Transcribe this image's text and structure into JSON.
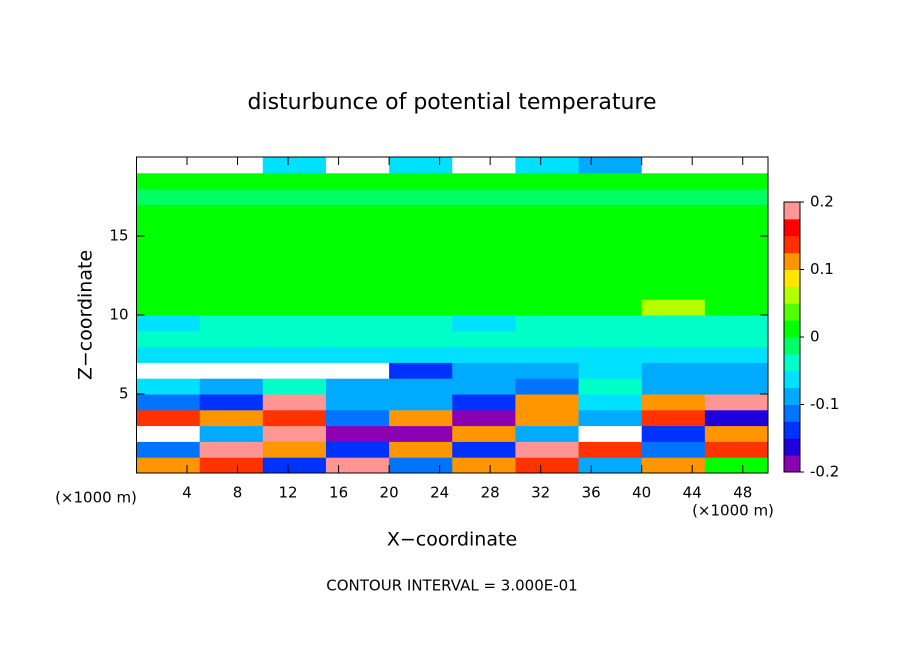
{
  "chart_data": {
    "type": "heatmap",
    "title": "disturbunce of potential temperature",
    "x_label": "X−coordinate",
    "y_label": "Z−coordinate",
    "unit_label_left": "(×1000 m)",
    "unit_label_right": "(×1000 m)",
    "annotation": "CONTOUR INTERVAL = 3.000E-01",
    "xlim": [
      0,
      50
    ],
    "ylim": [
      0,
      20
    ],
    "xticks": [
      4,
      8,
      12,
      16,
      20,
      24,
      28,
      32,
      36,
      40,
      44,
      48
    ],
    "yticks": [
      5,
      10,
      15
    ],
    "xbins": [
      0,
      5,
      10,
      15,
      20,
      25,
      30,
      35,
      40,
      45,
      50
    ],
    "ybins": [
      0,
      1,
      2,
      3,
      4,
      5,
      6,
      7,
      8,
      9,
      10,
      11,
      12,
      13,
      14,
      15,
      16,
      17,
      18,
      19,
      20
    ],
    "values": [
      [
        0.1,
        0.15,
        -0.15,
        0.18,
        -0.12,
        0.12,
        0.15,
        -0.1,
        0.12,
        0.0
      ],
      [
        -0.12,
        0.2,
        0.12,
        -0.15,
        0.1,
        -0.15,
        0.2,
        0.15,
        -0.12,
        0.14
      ],
      [
        0.25,
        -0.1,
        0.18,
        -0.18,
        -0.2,
        0.12,
        -0.1,
        0.25,
        -0.15,
        0.12
      ],
      [
        0.15,
        0.12,
        0.15,
        -0.12,
        0.12,
        -0.18,
        0.1,
        -0.1,
        0.15,
        -0.16
      ],
      [
        -0.12,
        -0.15,
        0.2,
        -0.1,
        -0.1,
        -0.15,
        0.12,
        -0.06,
        0.12,
        0.18
      ],
      [
        -0.06,
        -0.1,
        -0.05,
        -0.08,
        -0.1,
        -0.08,
        -0.12,
        -0.05,
        -0.08,
        -0.1
      ],
      [
        -0.25,
        -0.25,
        -0.25,
        -0.25,
        -0.15,
        -0.1,
        -0.08,
        -0.06,
        -0.1,
        -0.08
      ],
      [
        -0.06,
        -0.06,
        -0.06,
        -0.06,
        -0.06,
        -0.06,
        -0.06,
        -0.06,
        -0.06,
        -0.06
      ],
      [
        -0.04,
        -0.04,
        -0.04,
        -0.04,
        -0.04,
        -0.04,
        -0.04,
        -0.04,
        -0.04,
        -0.04
      ],
      [
        -0.06,
        -0.05,
        -0.05,
        -0.05,
        -0.05,
        -0.06,
        -0.05,
        -0.05,
        -0.05,
        -0.05
      ],
      [
        0.0,
        0.0,
        0.0,
        0.0,
        0.0,
        0.0,
        0.0,
        0.0,
        0.05,
        0.0
      ],
      [
        0.0,
        0.01,
        0.02,
        0.01,
        0.0,
        0.0,
        0.0,
        0.0,
        0.0,
        0.0
      ],
      [
        0.0,
        0.01,
        0.02,
        0.01,
        0.01,
        0.0,
        0.0,
        0.0,
        0.0,
        0.0
      ],
      [
        0.0,
        0.01,
        0.02,
        0.01,
        0.01,
        0.0,
        0.0,
        0.0,
        0.0,
        0.0
      ],
      [
        0.0,
        0.01,
        0.02,
        0.01,
        0.01,
        0.0,
        0.0,
        0.0,
        0.0,
        0.0
      ],
      [
        0.0,
        0.01,
        0.01,
        0.01,
        0.01,
        0.0,
        0.0,
        0.0,
        0.0,
        0.0
      ],
      [
        0.0,
        0.01,
        0.01,
        0.01,
        0.0,
        0.0,
        0.0,
        0.0,
        0.0,
        0.0
      ],
      [
        -0.02,
        -0.02,
        -0.02,
        -0.02,
        -0.02,
        -0.02,
        -0.02,
        -0.02,
        -0.02,
        -0.02
      ],
      [
        0.0,
        0.0,
        0.0,
        0.0,
        0.0,
        0.0,
        0.0,
        0.0,
        0.0,
        0.0
      ],
      [
        -0.25,
        -0.25,
        -0.06,
        -0.25,
        -0.06,
        -0.25,
        -0.06,
        -0.08,
        -0.25,
        -0.25
      ]
    ],
    "clim": [
      -0.2,
      0.2
    ],
    "cticks": [
      -0.2,
      -0.1,
      0,
      0.1,
      0.2
    ],
    "colors": [
      "#8c00b4",
      "#1e00dc",
      "#0032ff",
      "#0073ff",
      "#00aaff",
      "#00e1ff",
      "#00ffc8",
      "#00ff64",
      "#00ff00",
      "#50ff00",
      "#b4ff00",
      "#ffe600",
      "#ff9600",
      "#ff3200",
      "#ff0000",
      "#ff9696"
    ],
    "out_of_range_color": "#ffffff"
  }
}
